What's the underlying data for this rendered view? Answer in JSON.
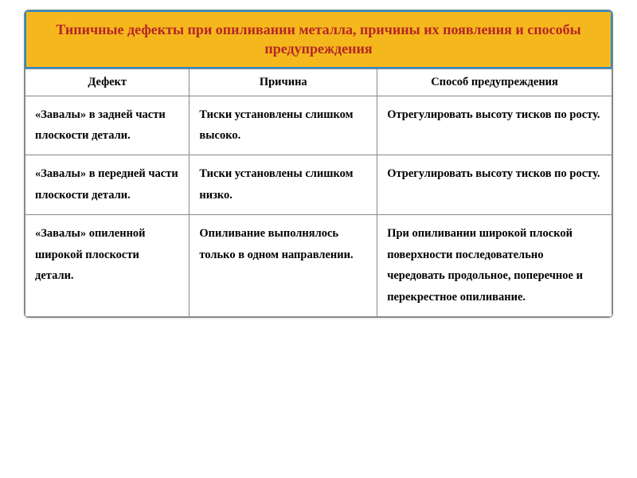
{
  "title": "Типичные дефекты при опиливании металла, причины их появления и способы предупреждения",
  "headers": {
    "col1": "Дефект",
    "col2": "Причина",
    "col3": "Способ  предупреждения"
  },
  "rows": [
    {
      "defect": "«Завалы» в задней части плоскости детали.",
      "cause": "Тиски установлены слишком высоко.",
      "prevention": "Отрегулировать высоту тисков по росту."
    },
    {
      "defect": "«Завалы» в передней части плоскости детали.",
      "cause": "Тиски установлены слишком низко.",
      "prevention": "Отрегулировать высоту тисков по росту."
    },
    {
      "defect": "«Завалы» опиленной широкой плоскости детали.",
      "cause": "Опиливание выполнялось только в одном направлении.",
      "prevention": "При опиливании широкой плоской поверхности последовательно чередовать продольное, поперечное и перекрестное опиливание."
    }
  ],
  "styling": {
    "banner_bg": "#f4b81d",
    "banner_border": "#2d8bc9",
    "title_color": "#b82525",
    "cell_border": "#888888",
    "text_color": "#000000",
    "font_family": "Georgia, Times New Roman, serif",
    "title_fontsize": 18,
    "cell_fontsize": 14.5,
    "col_widths": [
      "28%",
      "32%",
      "40%"
    ]
  }
}
